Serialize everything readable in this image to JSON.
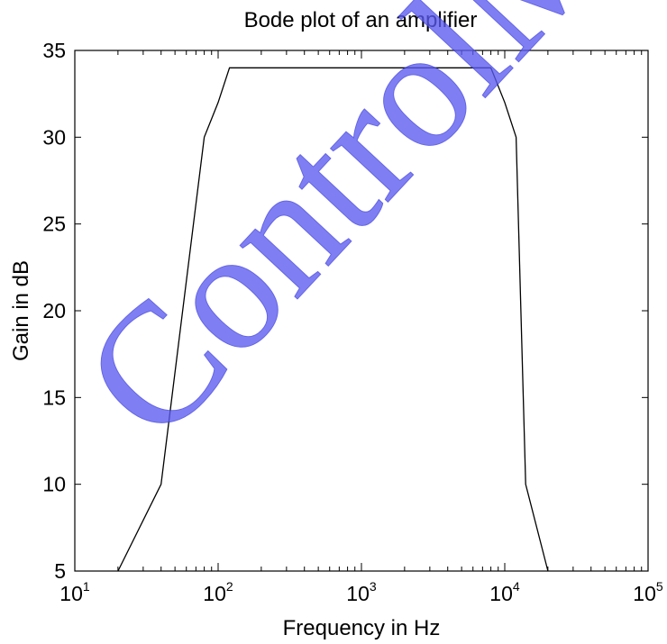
{
  "chart_data": {
    "type": "line",
    "title": "Bode plot of an amplifier",
    "xlabel": "Frequency in Hz",
    "ylabel": "Gain in dB",
    "xscale": "log",
    "xlim": [
      10,
      100000
    ],
    "ylim": [
      5,
      35
    ],
    "grid": false,
    "x_ticks": [
      {
        "base": "10",
        "exp": "1",
        "value": 10
      },
      {
        "base": "10",
        "exp": "2",
        "value": 100
      },
      {
        "base": "10",
        "exp": "3",
        "value": 1000
      },
      {
        "base": "10",
        "exp": "4",
        "value": 10000
      },
      {
        "base": "10",
        "exp": "5",
        "value": 100000
      }
    ],
    "y_ticks": [
      "5",
      "10",
      "15",
      "20",
      "25",
      "30",
      "35"
    ],
    "series": [
      {
        "color": "#000000",
        "x": [
          20,
          40,
          80,
          100,
          120,
          8000,
          10000,
          12000,
          14000,
          20000
        ],
        "y": [
          5,
          10,
          30,
          32,
          34,
          34,
          32,
          30,
          10,
          5
        ]
      }
    ]
  },
  "watermark": {
    "text": "ControlMak",
    "color": "#5c5cf0"
  }
}
